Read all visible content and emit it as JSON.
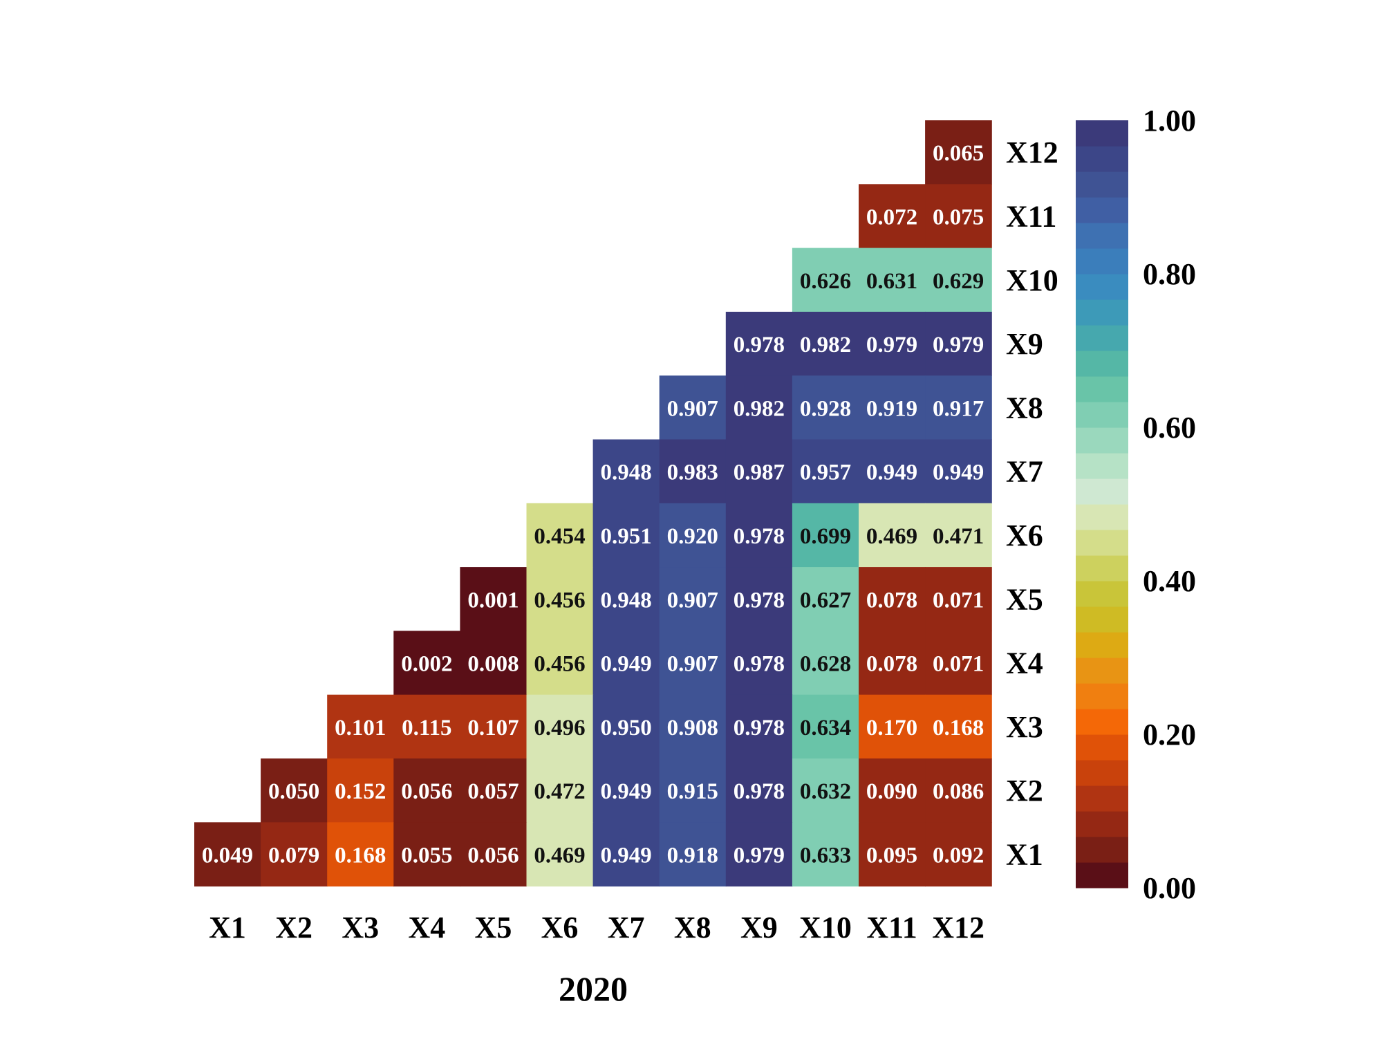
{
  "chart_data": {
    "type": "heatmap",
    "title": "2020",
    "xlabel": "",
    "ylabel": "",
    "x_labels": [
      "X1",
      "X2",
      "X3",
      "X4",
      "X5",
      "X6",
      "X7",
      "X8",
      "X9",
      "X10",
      "X11",
      "X12"
    ],
    "y_labels": [
      "X12",
      "X11",
      "X10",
      "X9",
      "X8",
      "X7",
      "X6",
      "X5",
      "X4",
      "X3",
      "X2",
      "X1"
    ],
    "values": [
      [
        null,
        null,
        null,
        null,
        null,
        null,
        null,
        null,
        null,
        null,
        null,
        0.065
      ],
      [
        null,
        null,
        null,
        null,
        null,
        null,
        null,
        null,
        null,
        null,
        0.072,
        0.075
      ],
      [
        null,
        null,
        null,
        null,
        null,
        null,
        null,
        null,
        null,
        0.626,
        0.631,
        0.629
      ],
      [
        null,
        null,
        null,
        null,
        null,
        null,
        null,
        null,
        0.978,
        0.982,
        0.979,
        0.979
      ],
      [
        null,
        null,
        null,
        null,
        null,
        null,
        null,
        0.907,
        0.982,
        0.928,
        0.919,
        0.917
      ],
      [
        null,
        null,
        null,
        null,
        null,
        null,
        0.948,
        0.983,
        0.987,
        0.957,
        0.949,
        0.949
      ],
      [
        null,
        null,
        null,
        null,
        null,
        0.454,
        0.951,
        0.92,
        0.978,
        0.699,
        0.469,
        0.471
      ],
      [
        null,
        null,
        null,
        null,
        0.001,
        0.456,
        0.948,
        0.907,
        0.978,
        0.627,
        0.078,
        0.071
      ],
      [
        null,
        null,
        null,
        0.002,
        0.008,
        0.456,
        0.949,
        0.907,
        0.978,
        0.628,
        0.078,
        0.071
      ],
      [
        null,
        null,
        0.101,
        0.115,
        0.107,
        0.496,
        0.95,
        0.908,
        0.978,
        0.634,
        0.17,
        0.168
      ],
      [
        null,
        0.05,
        0.152,
        0.056,
        0.057,
        0.472,
        0.949,
        0.915,
        0.978,
        0.632,
        0.09,
        0.086
      ],
      [
        0.049,
        0.079,
        0.168,
        0.055,
        0.056,
        0.469,
        0.949,
        0.918,
        0.979,
        0.633,
        0.095,
        0.092
      ]
    ],
    "value_format": "3 decimals",
    "colorbar": {
      "range": [
        0.0,
        1.0
      ],
      "ticks": [
        0.0,
        0.2,
        0.4,
        0.6,
        0.8,
        1.0
      ],
      "tick_labels": [
        "0.00",
        "0.20",
        "0.40",
        "0.60",
        "0.80",
        "1.00"
      ],
      "steps": 30,
      "colors_low_to_high": [
        "#5a0f17",
        "#7a1f15",
        "#952814",
        "#b03412",
        "#c9420c",
        "#e05208",
        "#f46807",
        "#f07f10",
        "#e89414",
        "#ddaa14",
        "#cfbb24",
        "#c9c539",
        "#cdd15e",
        "#d4dd8a",
        "#d8e6b4",
        "#cfe8d2",
        "#b6e2c6",
        "#9ad8bd",
        "#80ceb3",
        "#69c4a8",
        "#55b7a6",
        "#46a8ae",
        "#3d9ab8",
        "#3a8cbf",
        "#3b7ebb",
        "#3e71b2",
        "#405fa4",
        "#3f5394",
        "#3c4688",
        "#3b3a7a"
      ]
    },
    "grid": false,
    "legend": "colorbar-right"
  }
}
